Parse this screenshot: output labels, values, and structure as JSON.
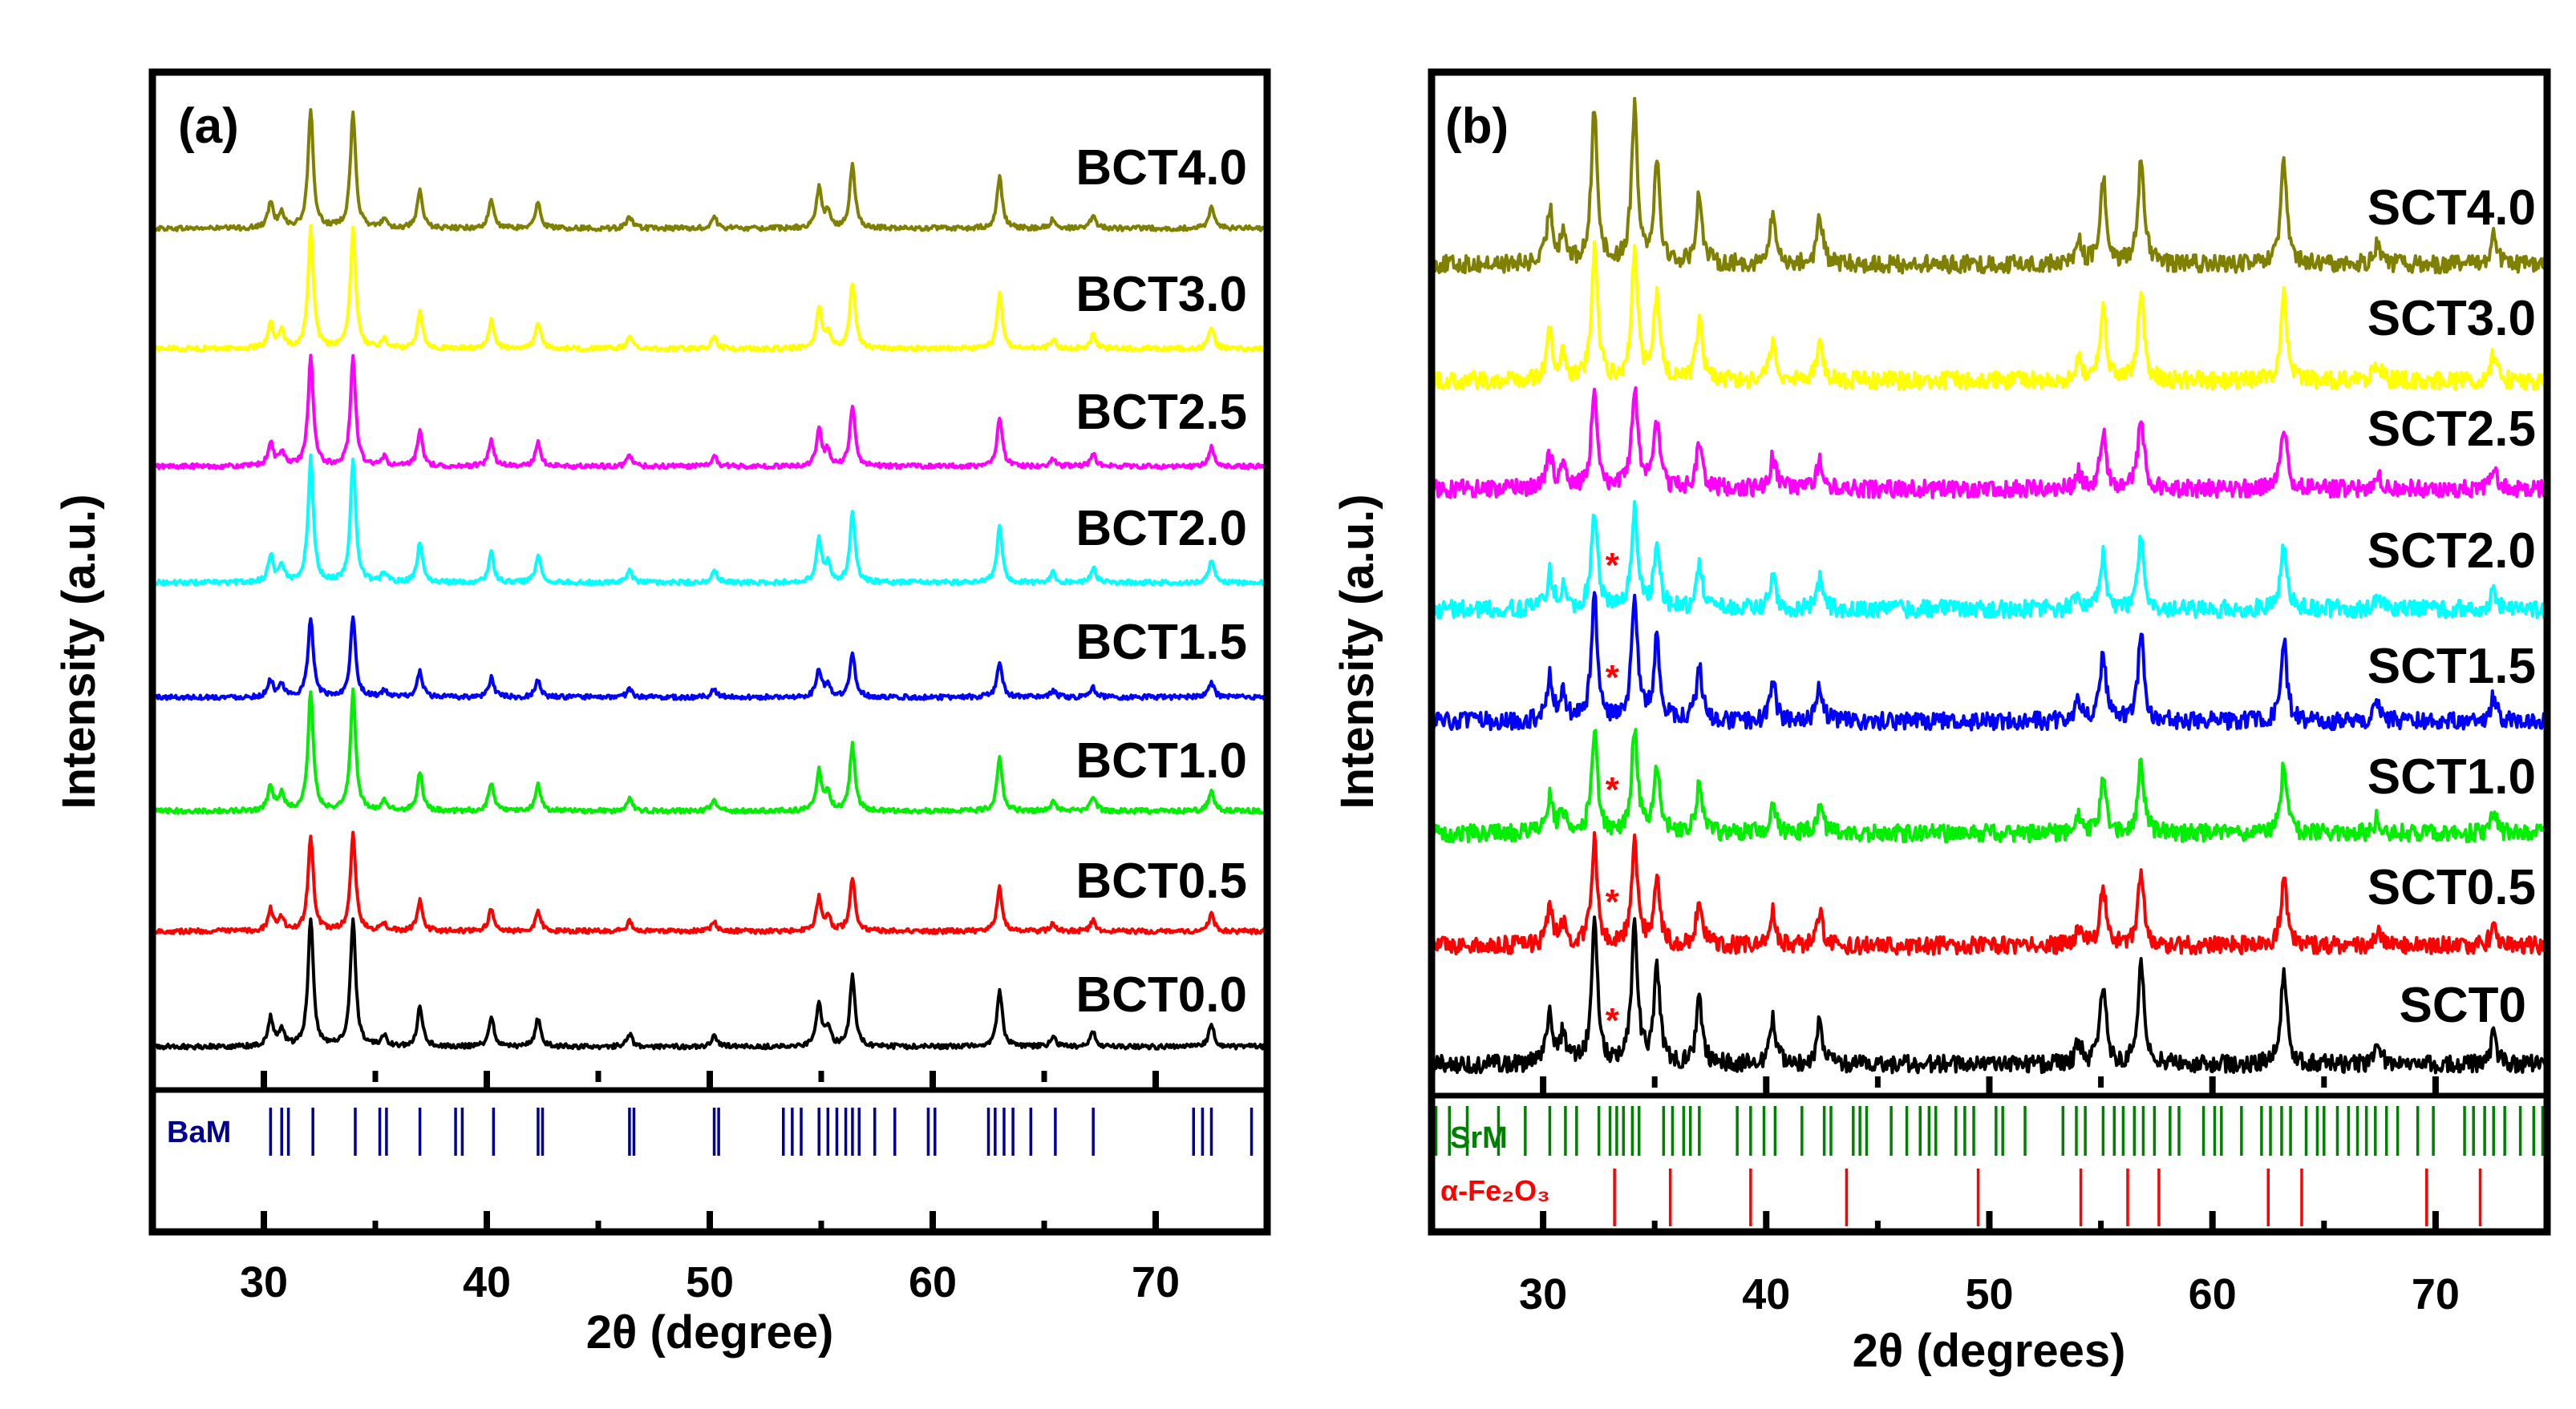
{
  "chart_data": [
    {
      "panel_label": "(a)",
      "type": "line",
      "xlabel": "2θ (degree)",
      "ylabel": "Intensity (a.u.)",
      "xlim": [
        25,
        75
      ],
      "xticks": [
        30,
        40,
        50,
        60,
        70
      ],
      "minor_xticks": [
        35,
        45,
        55,
        65
      ],
      "peaks": [
        30.3,
        30.8,
        32.1,
        34.0,
        35.4,
        37.0,
        40.2,
        42.3,
        46.4,
        50.2,
        54.9,
        55.3,
        56.4,
        63.0,
        65.4,
        67.2,
        72.5
      ],
      "peak_rel_heights": [
        0.22,
        0.14,
        1.0,
        1.0,
        0.08,
        0.32,
        0.24,
        0.22,
        0.1,
        0.1,
        0.34,
        0.14,
        0.55,
        0.45,
        0.08,
        0.12,
        0.18
      ],
      "series": [
        {
          "name": "BCT4.0",
          "color": "#808000"
        },
        {
          "name": "BCT3.0",
          "color": "#ffff00"
        },
        {
          "name": "BCT2.5",
          "color": "#ff00ff"
        },
        {
          "name": "BCT2.0",
          "color": "#00ffff"
        },
        {
          "name": "BCT1.5",
          "color": "#0000ff"
        },
        {
          "name": "BCT1.0",
          "color": "#00ee00"
        },
        {
          "name": "BCT0.5",
          "color": "#ff0000"
        },
        {
          "name": "BCT0.0",
          "color": "#000000"
        }
      ],
      "reference_patterns": [
        {
          "label": "BaM",
          "label_color": "#000099",
          "color": "#000099",
          "positions": [
            30.3,
            30.8,
            31.1,
            32.2,
            34.1,
            35.2,
            35.5,
            37.0,
            38.6,
            38.9,
            40.3,
            42.3,
            42.5,
            46.4,
            46.6,
            50.2,
            50.4,
            53.3,
            53.7,
            54.1,
            54.9,
            55.3,
            55.7,
            56.1,
            56.4,
            56.7,
            57.4,
            58.3,
            59.8,
            60.1,
            62.5,
            62.8,
            63.2,
            63.6,
            64.4,
            65.5,
            67.2,
            71.7,
            72.1,
            72.5,
            74.3
          ]
        }
      ]
    },
    {
      "panel_label": "(b)",
      "type": "line",
      "xlabel": "2θ (degrees)",
      "ylabel": "Intensity (a.u.)",
      "xlim": [
        25,
        75
      ],
      "xticks": [
        30,
        40,
        50,
        60,
        70
      ],
      "minor_xticks": [
        35,
        45,
        55,
        65
      ],
      "peaks": [
        30.3,
        30.9,
        32.3,
        34.1,
        35.1,
        37.0,
        40.3,
        42.4,
        54.0,
        55.1,
        56.8,
        63.2,
        67.4,
        72.6
      ],
      "peak_rel_heights": [
        0.35,
        0.2,
        1.0,
        1.0,
        0.65,
        0.45,
        0.32,
        0.3,
        0.15,
        0.55,
        0.7,
        0.65,
        0.15,
        0.2
      ],
      "impurity_marker": "*",
      "impurity_marker_color": "#ff0000",
      "impurity_position": 33.1,
      "impurity_series": [
        "SCT2.0",
        "SCT1.5",
        "SCT1.0",
        "SCT0.5",
        "SCT0"
      ],
      "series": [
        {
          "name": "SCT4.0",
          "color": "#808000"
        },
        {
          "name": "SCT3.0",
          "color": "#ffff00"
        },
        {
          "name": "SCT2.5",
          "color": "#ff00ff"
        },
        {
          "name": "SCT2.0",
          "color": "#00ffff"
        },
        {
          "name": "SCT1.5",
          "color": "#0000ff"
        },
        {
          "name": "SCT1.0",
          "color": "#00ee00"
        },
        {
          "name": "SCT0.5",
          "color": "#ff0000"
        },
        {
          "name": "SCT0",
          "color": "#000000"
        }
      ],
      "reference_patterns": [
        {
          "label": "SrM",
          "label_color": "#008000",
          "color": "#008000",
          "positions": [
            25.2,
            25.8,
            26.6,
            28.0,
            29.2,
            30.3,
            31.0,
            31.5,
            32.5,
            33.0,
            33.3,
            33.6,
            34.0,
            34.3,
            35.4,
            35.8,
            36.3,
            36.6,
            37.0,
            38.7,
            39.3,
            39.9,
            40.4,
            41.6,
            42.6,
            42.9,
            43.9,
            44.2,
            44.5,
            45.6,
            46.3,
            46.9,
            47.3,
            47.6,
            48.5,
            48.9,
            49.3,
            50.3,
            50.6,
            51.6,
            53.3,
            53.9,
            54.3,
            55.1,
            55.6,
            56.0,
            56.5,
            56.9,
            57.4,
            58.1,
            58.5,
            59.6,
            60.1,
            60.4,
            61.3,
            62.2,
            62.6,
            63.1,
            63.5,
            64.2,
            64.7,
            65.0,
            65.6,
            66.1,
            66.5,
            66.9,
            67.3,
            67.8,
            68.3,
            69.2,
            69.9,
            71.3,
            71.7,
            72.2,
            72.6,
            73.1,
            73.8,
            74.4,
            74.8
          ]
        },
        {
          "label": "α-Fe₂O₃",
          "label_color": "#ff0000",
          "color": "#ff0000",
          "positions": [
            33.2,
            35.7,
            39.3,
            43.6,
            49.5,
            54.1,
            56.2,
            57.6,
            62.5,
            64.0,
            69.6,
            72.0
          ]
        }
      ]
    }
  ]
}
